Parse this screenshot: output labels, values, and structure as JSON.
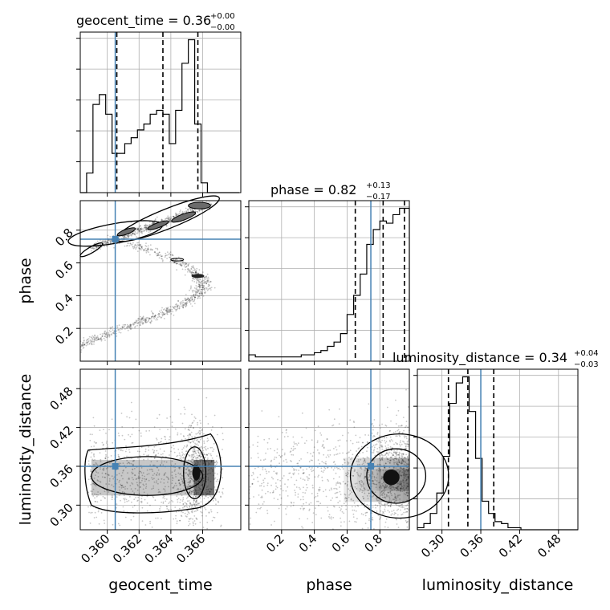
{
  "chart_data": {
    "type": "corner",
    "parameters": [
      "geocent_time",
      "phase",
      "luminosity_distance"
    ],
    "truths": {
      "geocent_time": 0.3605,
      "phase": 0.745,
      "luminosity_distance": 0.36
    },
    "grid": true,
    "diagonal_titles": [
      {
        "parameter": "geocent_time",
        "prefix": "geocent_time = 0.36",
        "plus": "+0.00",
        "minus": "−0.00"
      },
      {
        "parameter": "phase",
        "prefix": "phase = 0.82",
        "plus": "+0.13",
        "minus": "−0.17"
      },
      {
        "parameter": "luminosity_distance",
        "prefix": "luminosity_distance = 0.34",
        "plus": "+0.04",
        "minus": "−0.03"
      }
    ],
    "axis_labels": {
      "x": [
        "geocent_time",
        "phase",
        "luminosity_distance"
      ],
      "y": [
        "phase",
        "luminosity_distance"
      ]
    },
    "ticks": {
      "geocent_time": {
        "range": [
          0.3583,
          0.3684
        ],
        "values": [
          0.36,
          0.362,
          0.364,
          0.366
        ],
        "labels": [
          "0.360",
          "0.362",
          "0.364",
          "0.366"
        ]
      },
      "phase": {
        "range": [
          0.0,
          0.98
        ],
        "values": [
          0.2,
          0.4,
          0.6,
          0.8
        ],
        "labels": [
          "0.2",
          "0.4",
          "0.6",
          "0.8"
        ]
      },
      "luminosity_distance": {
        "range": [
          0.262,
          0.51
        ],
        "values": [
          0.3,
          0.36,
          0.42,
          0.48
        ],
        "labels": [
          "0.30",
          "0.36",
          "0.42",
          "0.48"
        ]
      }
    },
    "histograms": [
      {
        "parameter": "geocent_time",
        "bin_edges": [
          0.3583,
          0.3587,
          0.3591,
          0.3595,
          0.3599,
          0.3603,
          0.3607,
          0.3611,
          0.3615,
          0.3619,
          0.3623,
          0.3627,
          0.3631,
          0.3635,
          0.3639,
          0.3643,
          0.3647,
          0.3651,
          0.3655,
          0.3659,
          0.3663,
          0.3667,
          0.3671,
          0.3675,
          0.3679,
          0.3683
        ],
        "counts": [
          0,
          10,
          45,
          50,
          40,
          20,
          20,
          25,
          28,
          32,
          35,
          40,
          42,
          40,
          25,
          42,
          66,
          78,
          35,
          5,
          0,
          0,
          0,
          0,
          0
        ],
        "quantile_lines": [
          0.3606,
          0.3635,
          0.3657
        ]
      },
      {
        "parameter": "phase",
        "bin_edges": [
          0.0,
          0.04,
          0.08,
          0.12,
          0.16,
          0.2,
          0.24,
          0.28,
          0.32,
          0.36,
          0.4,
          0.44,
          0.48,
          0.52,
          0.56,
          0.6,
          0.64,
          0.68,
          0.72,
          0.76,
          0.8,
          0.84,
          0.88,
          0.92,
          0.96,
          0.98
        ],
        "counts": [
          3,
          2,
          2,
          2,
          2,
          2,
          2,
          2,
          3,
          3,
          4,
          5,
          7,
          9,
          13,
          22,
          31,
          41,
          55,
          62,
          66,
          65,
          69,
          72,
          72
        ],
        "quantile_lines": [
          0.65,
          0.82,
          0.95
        ]
      },
      {
        "parameter": "luminosity_distance",
        "bin_edges": [
          0.262,
          0.272,
          0.282,
          0.292,
          0.302,
          0.312,
          0.322,
          0.332,
          0.342,
          0.352,
          0.362,
          0.372,
          0.382,
          0.392,
          0.402,
          0.412,
          0.422,
          0.432,
          0.442,
          0.452,
          0.462,
          0.472,
          0.482,
          0.492,
          0.502,
          0.51
        ],
        "counts": [
          1,
          3,
          8,
          18,
          36,
          62,
          72,
          75,
          58,
          35,
          14,
          8,
          4,
          3,
          1,
          1,
          0,
          0,
          0,
          0,
          0,
          0,
          0,
          0,
          0
        ],
        "quantile_lines": [
          0.31,
          0.34,
          0.38
        ]
      }
    ],
    "joint_panels": [
      {
        "x": "geocent_time",
        "y": "phase",
        "density_path": "two branches: lower arc at phase 0.7 bending down through 0.5 to 0.1; upper arc rising from 0.7 to 0.95 near 0.366"
      },
      {
        "x": "geocent_time",
        "y": "luminosity_distance",
        "density_center": [
          0.3655,
          0.345
        ]
      },
      {
        "x": "phase",
        "y": "luminosity_distance",
        "density_center": [
          0.88,
          0.34
        ]
      }
    ]
  }
}
